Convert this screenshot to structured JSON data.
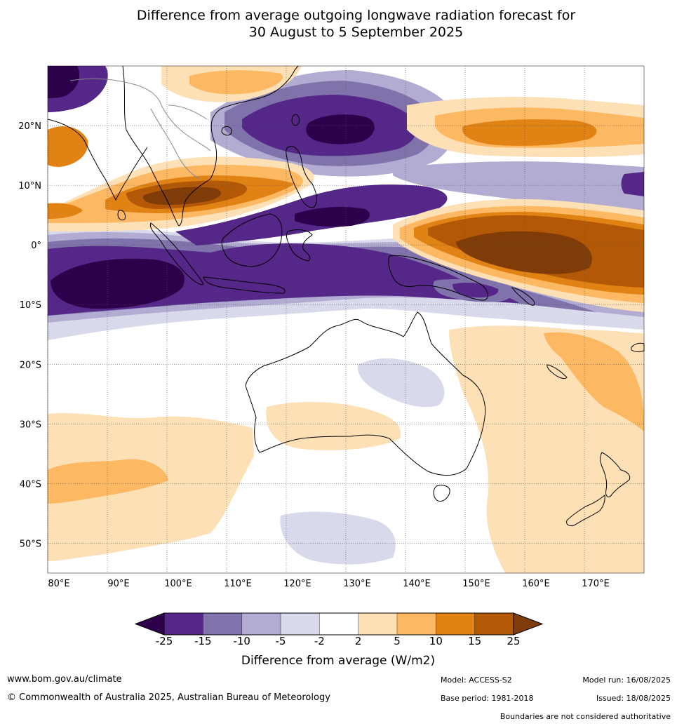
{
  "title": {
    "line1": "Difference from average outgoing longwave radiation forecast for",
    "line2": "30 August to 5 September 2025"
  },
  "map": {
    "lon_range": [
      80,
      180
    ],
    "lat_range": [
      -55,
      30
    ],
    "lat_ticks": [
      {
        "value": 20,
        "label": "20°N"
      },
      {
        "value": 10,
        "label": "10°N"
      },
      {
        "value": 0,
        "label": "0°"
      },
      {
        "value": -10,
        "label": "10°S"
      },
      {
        "value": -20,
        "label": "20°S"
      },
      {
        "value": -30,
        "label": "30°S"
      },
      {
        "value": -40,
        "label": "40°S"
      },
      {
        "value": -50,
        "label": "50°S"
      }
    ],
    "lon_ticks": [
      {
        "value": 80,
        "label": "80°E"
      },
      {
        "value": 90,
        "label": "90°E"
      },
      {
        "value": 100,
        "label": "100°E"
      },
      {
        "value": 110,
        "label": "110°E"
      },
      {
        "value": 120,
        "label": "120°E"
      },
      {
        "value": 130,
        "label": "130°E"
      },
      {
        "value": 140,
        "label": "140°E"
      },
      {
        "value": 150,
        "label": "150°E"
      },
      {
        "value": 160,
        "label": "160°E"
      },
      {
        "value": 170,
        "label": "170°E"
      }
    ],
    "gridlines": true
  },
  "colorbar": {
    "colors": [
      "#2d004b",
      "#542788",
      "#8073ac",
      "#b2abd2",
      "#d8daeb",
      "#ffffff",
      "#fee0b6",
      "#fdb863",
      "#e08214",
      "#b35806",
      "#7f3b08"
    ],
    "labels": [
      "-25",
      "-15",
      "-10",
      "-5",
      "-2",
      "2",
      "5",
      "10",
      "15",
      "25"
    ],
    "title": "Difference from average (W/m2)"
  },
  "footer": {
    "website": "www.bom.gov.au/climate",
    "copyright": "© Commonwealth of Australia 2025, Australian Bureau of Meteorology",
    "model": "Model: ACCESS-S2",
    "base_period": "Base period: 1981-2018",
    "model_run": "Model run: 16/08/2025",
    "issued": "Issued: 18/08/2025",
    "disclaimer": "Boundaries are not considered authoritative"
  }
}
